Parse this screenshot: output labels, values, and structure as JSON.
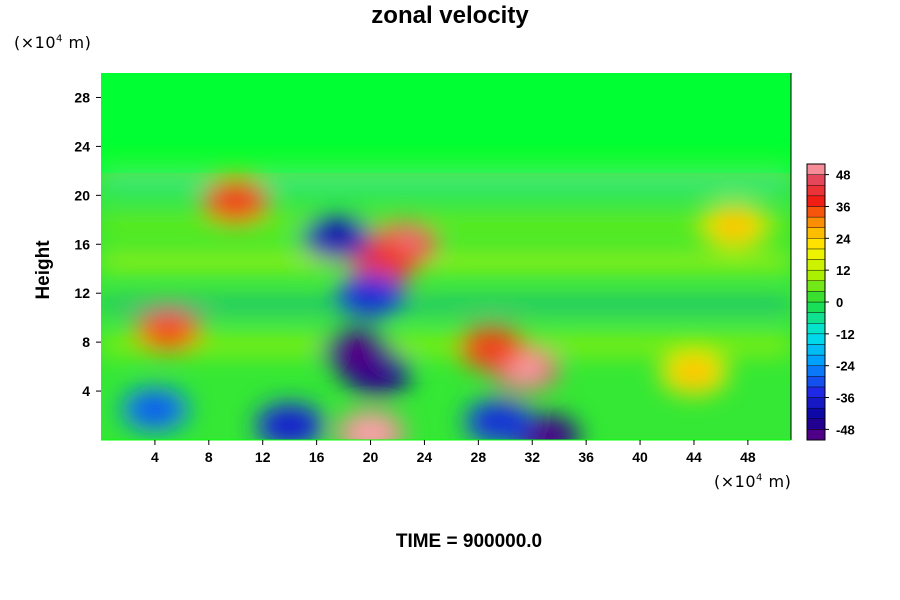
{
  "chart_data": {
    "type": "heatmap",
    "title": "zonal velocity",
    "ylabel": "Height",
    "y_unit": {
      "prefix": "(×10",
      "exp": "4",
      "suffix": " m)"
    },
    "x_unit": {
      "prefix": "(×10",
      "exp": "4",
      "suffix": " m)"
    },
    "time_label": "TIME = 900000.0",
    "xlim": [
      0,
      51.2
    ],
    "ylim": [
      0,
      30
    ],
    "x_ticks": [
      4,
      8,
      12,
      16,
      20,
      24,
      28,
      32,
      36,
      40,
      44,
      48
    ],
    "y_ticks": [
      4,
      8,
      12,
      16,
      20,
      24,
      28
    ],
    "colorbar": {
      "range": [
        -52,
        52
      ],
      "ticks": [
        48,
        36,
        24,
        12,
        0,
        -12,
        -24,
        -36,
        -48
      ]
    },
    "features": [
      {
        "x": 20,
        "y": 0.6,
        "value": 50
      },
      {
        "x": 20.5,
        "y": 5.5,
        "value": -44
      },
      {
        "x": 19,
        "y": 7.2,
        "value": -48
      },
      {
        "x": 31.5,
        "y": 5.8,
        "value": 48
      },
      {
        "x": 29,
        "y": 7.5,
        "value": 34
      },
      {
        "x": 33,
        "y": 0.3,
        "value": -46
      },
      {
        "x": 29.5,
        "y": 1.5,
        "value": -32
      },
      {
        "x": 22.5,
        "y": 16,
        "value": 44
      },
      {
        "x": 21,
        "y": 14.5,
        "value": 36
      },
      {
        "x": 17.5,
        "y": 16.5,
        "value": -38
      },
      {
        "x": 10,
        "y": 19.5,
        "value": 34
      },
      {
        "x": 5,
        "y": 9,
        "value": 32
      },
      {
        "x": 20,
        "y": 11.8,
        "value": -32
      },
      {
        "x": 44,
        "y": 5.5,
        "value": 22
      },
      {
        "x": 4,
        "y": 2.5,
        "value": -26
      },
      {
        "x": 14,
        "y": 1.2,
        "value": -34
      },
      {
        "x": 47,
        "y": 17.5,
        "value": 22
      }
    ]
  }
}
